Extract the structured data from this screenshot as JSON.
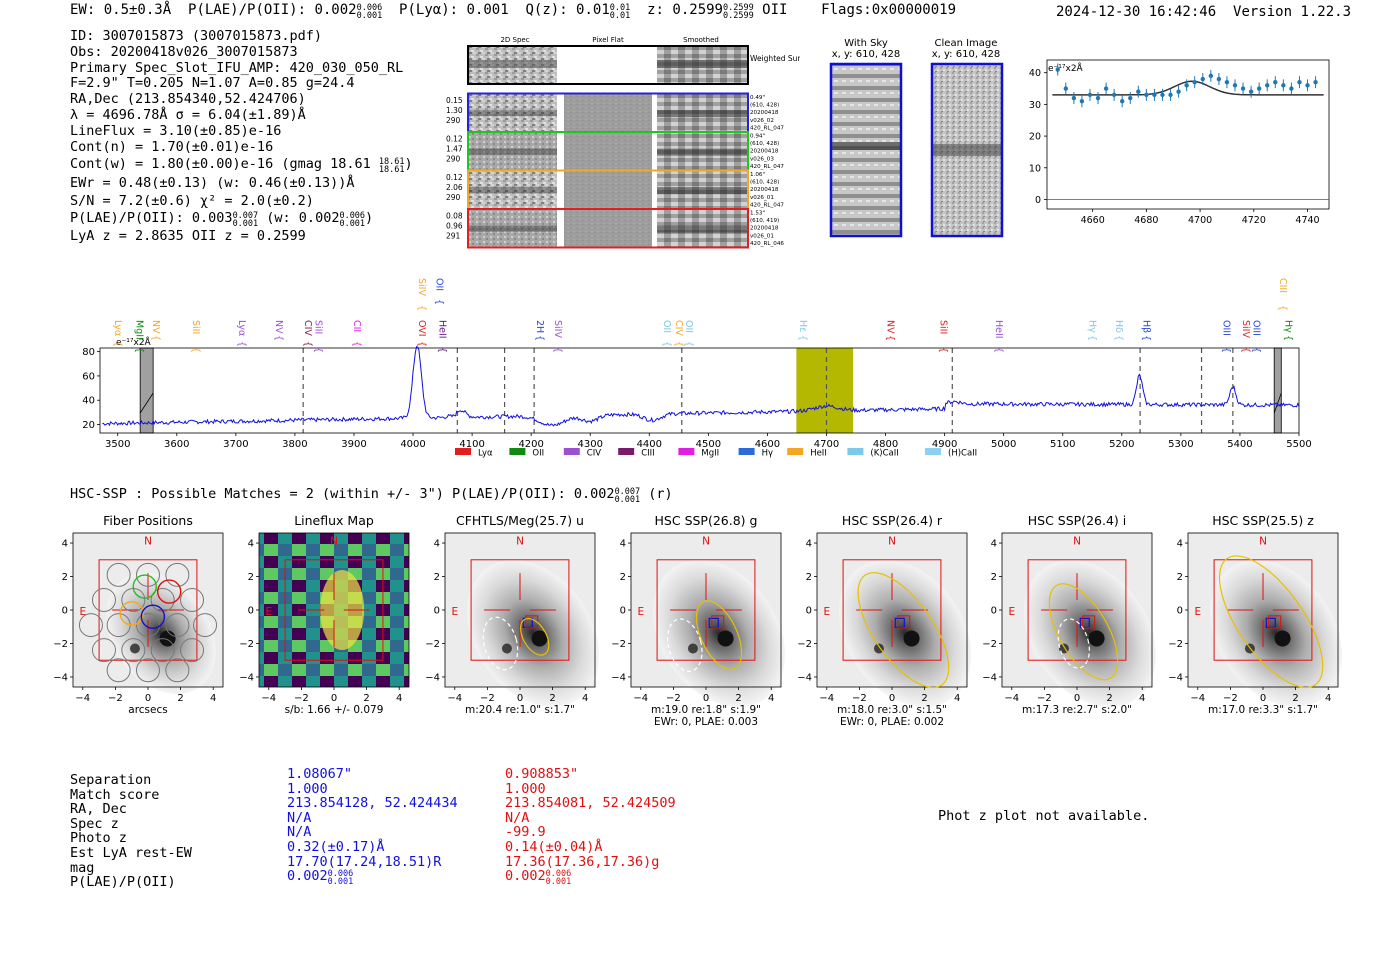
{
  "header": {
    "ew": "EW: 0.5±0.3Å",
    "plae_label": "P(LAE)/P(OII): 0.002",
    "plae_hi": "0.006",
    "plae_lo": "0.001",
    "plya": "P(Lyα): 0.001",
    "qz_label": "Q(z): 0.01",
    "qz_hi": "0.01",
    "qz_lo": "0.01",
    "z_label": "z: 0.2599",
    "z_hi": "0.2599",
    "z_lo": "0.2599",
    "z_tag": "OII",
    "flags": "Flags:0x00000019",
    "timestamp": "2024-12-30 16:42:46",
    "version": "Version 1.22.3"
  },
  "info": {
    "id": "ID: 3007015873 (3007015873.pdf)",
    "obs": "Obs: 20200418v026_3007015873",
    "primary": "Primary Spec_Slot_IFU_AMP: 420_030_050_RL",
    "fparams": "F=2.9\"  T=0.205  N=1.07  A=0.85  g=24.4",
    "radec": "RA,Dec (213.854340,52.424706)",
    "lambda": "λ = 4696.78Å   σ = 6.04(±1.89)Å",
    "lineflux": "LineFlux = 3.10(±0.85)e-16",
    "contn": "Cont(n) = 1.70(±0.01)e-16",
    "contw": "Cont(w) = 1.80(±0.00)e-16 (gmag 18.61",
    "contw_hi": "18.61",
    "contw_lo": "18.61",
    "ewr": "EWr = 0.48(±0.13) (w: 0.46(±0.13))Å",
    "sn": "S/N = 7.2(±0.6)  χ² = 2.0(±0.2)",
    "plae": "P(LAE)/P(OII): 0.003",
    "plae_hi": "0.007",
    "plae_lo": "0.001",
    "plae_w": "(w: 0.002",
    "plae_w_hi": "0.006",
    "plae_w_lo": "0.001",
    "lyaz": "LyA z = 2.8635   OII z = 0.2599"
  },
  "fiber_cutouts": {
    "col_labels": [
      "2D Spec",
      "Pixel Flat",
      "Smoothed"
    ],
    "weighted_label": "Weighted Sum",
    "rows": [
      {
        "left": [
          "0.15",
          "1.30",
          "290"
        ],
        "right": [
          "0.49\"",
          "(610, 428)",
          "20200418",
          "v026_02",
          "420_RL_047"
        ],
        "color": "#2323d8"
      },
      {
        "left": [
          "0.12",
          "1.47",
          "290"
        ],
        "right": [
          "0.94\"",
          "(610, 428)",
          "20200418",
          "v026_03",
          "420_RL_047"
        ],
        "color": "#22c41f"
      },
      {
        "left": [
          "0.12",
          "2.06",
          "290"
        ],
        "right": [
          "1.06\"",
          "(610, 428)",
          "20200418",
          "v026_01",
          "420_RL_047"
        ],
        "color": "#f5a623"
      },
      {
        "left": [
          "0.08",
          "0.96",
          "291"
        ],
        "right": [
          "1.53\"",
          "(610, 419)",
          "20200418",
          "v026_01",
          "420_RL_046"
        ],
        "color": "#e02020"
      }
    ]
  },
  "sky_panels": {
    "with_sky": "With Sky",
    "clean": "Clean Image",
    "coords": "x, y: 610, 428"
  },
  "zoom_chart": {
    "type": "line",
    "unit": "e⁻¹⁷x2Å",
    "x_ticks": [
      "4660",
      "4680",
      "4700",
      "4720",
      "4740"
    ],
    "y_ticks": [
      "0",
      "10",
      "20",
      "30",
      "40"
    ],
    "xlim": [
      4643,
      4748
    ],
    "ylim": [
      -3,
      44
    ],
    "x": [
      4647,
      4650,
      4653,
      4656,
      4659,
      4662,
      4665,
      4668,
      4671,
      4674,
      4677,
      4680,
      4683,
      4686,
      4689,
      4692,
      4695,
      4698,
      4701,
      4704,
      4707,
      4710,
      4713,
      4716,
      4719,
      4722,
      4725,
      4728,
      4731,
      4734,
      4737,
      4740,
      4743
    ],
    "y": [
      41,
      35,
      32,
      31,
      33,
      32,
      35,
      33,
      31,
      32,
      34,
      33,
      33,
      33,
      33,
      34,
      36,
      37,
      38,
      39,
      38,
      37,
      36,
      35,
      34,
      35,
      36,
      37,
      36,
      35,
      37,
      36,
      37
    ],
    "fit_baseline": 33,
    "fit_amp": 4.3,
    "fit_center": 4697,
    "fit_sigma": 6.5
  },
  "spectrum": {
    "type": "line",
    "unit": "e⁻¹⁷x2Å",
    "x_ticks": [
      "3500",
      "3600",
      "3700",
      "3800",
      "3900",
      "4000",
      "4100",
      "4200",
      "4300",
      "4400",
      "4500",
      "4600",
      "4700",
      "4800",
      "4900",
      "5000",
      "5100",
      "5200",
      "5300",
      "5400",
      "5500"
    ],
    "y_ticks": [
      "20",
      "40",
      "60",
      "80"
    ],
    "xlim": [
      3470,
      5500
    ],
    "ylim": [
      13,
      83
    ],
    "line_labels": [
      {
        "name": "Lyα",
        "x": 3490,
        "color": "#f5a623",
        "tier": 1
      },
      {
        "name": "MgII",
        "x": 3527,
        "color": "#108a10",
        "tier": 1
      },
      {
        "name": "NV",
        "x": 3555,
        "color": "#f5a623",
        "tier": 1
      },
      {
        "name": "SiII",
        "x": 3622,
        "color": "#f5a623",
        "tier": 1
      },
      {
        "name": "Lyα",
        "x": 3700,
        "color": "#9b4fd1",
        "tier": 1
      },
      {
        "name": "NV",
        "x": 3763,
        "color": "#9b4fd1",
        "tier": 1
      },
      {
        "name": "CIV",
        "x": 3812,
        "color": "#8b1a4a",
        "tier": 1
      },
      {
        "name": "SiII",
        "x": 3830,
        "color": "#9b4fd1",
        "tier": 1
      },
      {
        "name": "CII",
        "x": 3895,
        "color": "#e020e0",
        "tier": 1
      },
      {
        "name": "OVI",
        "x": 4005,
        "color": "#e02020",
        "tier": 1
      },
      {
        "name": "SiIV",
        "x": 4005,
        "color": "#f5a623",
        "tier": 0
      },
      {
        "name": "HeII",
        "x": 4040,
        "color": "#6a1a8a",
        "tier": 1
      },
      {
        "name": "OII",
        "x": 4035,
        "color": "#2b4ad8",
        "tier": 0
      },
      {
        "name": "2H",
        "x": 4205,
        "color": "#2b4ad8",
        "tier": 1
      },
      {
        "name": "SiIV",
        "x": 4235,
        "color": "#9b4fd1",
        "tier": 1
      },
      {
        "name": "OII",
        "x": 4420,
        "color": "#7ec8e8",
        "tier": 1
      },
      {
        "name": "CIV",
        "x": 4440,
        "color": "#f5a623",
        "tier": 1
      },
      {
        "name": "OII",
        "x": 4457,
        "color": "#7ec8e8",
        "tier": 1
      },
      {
        "name": "Hε",
        "x": 4650,
        "color": "#7ec8e8",
        "tier": 1
      },
      {
        "name": "NV",
        "x": 4798,
        "color": "#e02020",
        "tier": 1
      },
      {
        "name": "SiII",
        "x": 4888,
        "color": "#e02020",
        "tier": 1
      },
      {
        "name": "HeII",
        "x": 4982,
        "color": "#9b4fd1",
        "tier": 1
      },
      {
        "name": "Hγ",
        "x": 5140,
        "color": "#7ec8e8",
        "tier": 1
      },
      {
        "name": "Hδ",
        "x": 5185,
        "color": "#7ec8e8",
        "tier": 1
      },
      {
        "name": "Hβ",
        "x": 5232,
        "color": "#2b4ad8",
        "tier": 1
      },
      {
        "name": "OIII",
        "x": 5367,
        "color": "#2b4ad8",
        "tier": 1
      },
      {
        "name": "SiIV",
        "x": 5400,
        "color": "#e02020",
        "tier": 1
      },
      {
        "name": "OIII",
        "x": 5418,
        "color": "#2b4ad8",
        "tier": 1
      },
      {
        "name": "CIII",
        "x": 5463,
        "color": "#f5a623",
        "tier": 0
      },
      {
        "name": "Hγ",
        "x": 5472,
        "color": "#108a10",
        "tier": 1
      }
    ],
    "dashed_lines": [
      3814,
      4075,
      4155,
      4205,
      4455,
      4700,
      4913,
      5231,
      5335,
      5388
    ],
    "highlight": [
      4649,
      4745
    ],
    "masked": [
      [
        3538,
        3560
      ],
      [
        5458,
        5470
      ]
    ],
    "peaks": [
      [
        4007,
        60,
        7
      ],
      [
        4076,
        8,
        10
      ],
      [
        4700,
        4,
        20
      ],
      [
        4917,
        2,
        10
      ],
      [
        5230,
        24,
        5
      ],
      [
        5388,
        15,
        5
      ]
    ],
    "troughs": [
      [
        4236,
        8,
        20
      ],
      [
        4300,
        5,
        14
      ],
      [
        4405,
        5,
        14
      ],
      [
        4070,
        5,
        6
      ]
    ],
    "legend": [
      {
        "name": "Lyα",
        "color": "#e02020"
      },
      {
        "name": "OII",
        "color": "#108a10"
      },
      {
        "name": "CIV",
        "color": "#9b4fd1"
      },
      {
        "name": "CIII",
        "color": "#7a1a6a"
      },
      {
        "name": "MgII",
        "color": "#e020e0"
      },
      {
        "name": "Hγ",
        "color": "#2b6ad8"
      },
      {
        "name": "HeII",
        "color": "#f5a623"
      },
      {
        "name": "(K)CaII",
        "color": "#7ec8e8"
      },
      {
        "name": "(H)CaII",
        "color": "#8ed0f0"
      }
    ]
  },
  "hsc": {
    "header": "HSC-SSP : Possible Matches = 2 (within +/- 3\")  P(LAE)/P(OII): 0.002",
    "header_hi": "0.007",
    "header_lo": "0.001",
    "header_tail": "(r)",
    "tick_labels": [
      "−4",
      "−2",
      "0",
      "2",
      "4"
    ],
    "panels": [
      {
        "title": "Fiber Positions",
        "cap1": "arcsecs",
        "cap2": ""
      },
      {
        "title": "Lineflux Map",
        "cap1": "s/b: 1.66 +/- 0.079",
        "cap2": ""
      },
      {
        "title": "CFHTLS/Meg(25.7) u",
        "cap1": "m:20.4  re:1.0\"  s:1.7\"",
        "cap2": ""
      },
      {
        "title": "HSC SSP(26.8) g",
        "cap1": "m:19.0  re:1.8\"  s:1.9\"",
        "cap2": "EWr: 0, PLAE: 0.003"
      },
      {
        "title": "HSC SSP(26.4) r",
        "cap1": "m:18.0  re:3.0\"  s:1.5\"",
        "cap2": "EWr: 0, PLAE: 0.002"
      },
      {
        "title": "HSC SSP(26.4) i",
        "cap1": "m:17.3  re:2.7\"  s:2.0\"",
        "cap2": ""
      },
      {
        "title": "HSC SSP(25.5) z",
        "cap1": "m:17.0  re:3.3\"  s:1.7\"",
        "cap2": ""
      }
    ],
    "north": "N",
    "east": "E"
  },
  "match_table": {
    "labels": [
      "Separation",
      "Match score",
      "RA, Dec",
      "Spec z",
      "Photo z",
      "Est LyA rest-EW",
      "mag",
      "P(LAE)/P(OII)"
    ],
    "col1": [
      "1.08067\"",
      "1.000",
      "213.854128, 52.424434",
      "N/A",
      "N/A",
      "0.32(±0.17)Å",
      "17.70(17.24,18.51)R",
      "0.002"
    ],
    "col1_hi": "0.006",
    "col1_lo": "0.001",
    "col2": [
      "0.908853\"",
      "1.000",
      "213.854081, 52.424509",
      "N/A",
      "-99.9",
      "0.14(±0.04)Å",
      "17.36(17.36,17.36)g",
      "0.002"
    ],
    "col2_hi": "0.006",
    "col2_lo": "0.001",
    "col1_color": "#1010e0",
    "col2_color": "#e01010"
  },
  "photz_note": "Phot z plot not available."
}
